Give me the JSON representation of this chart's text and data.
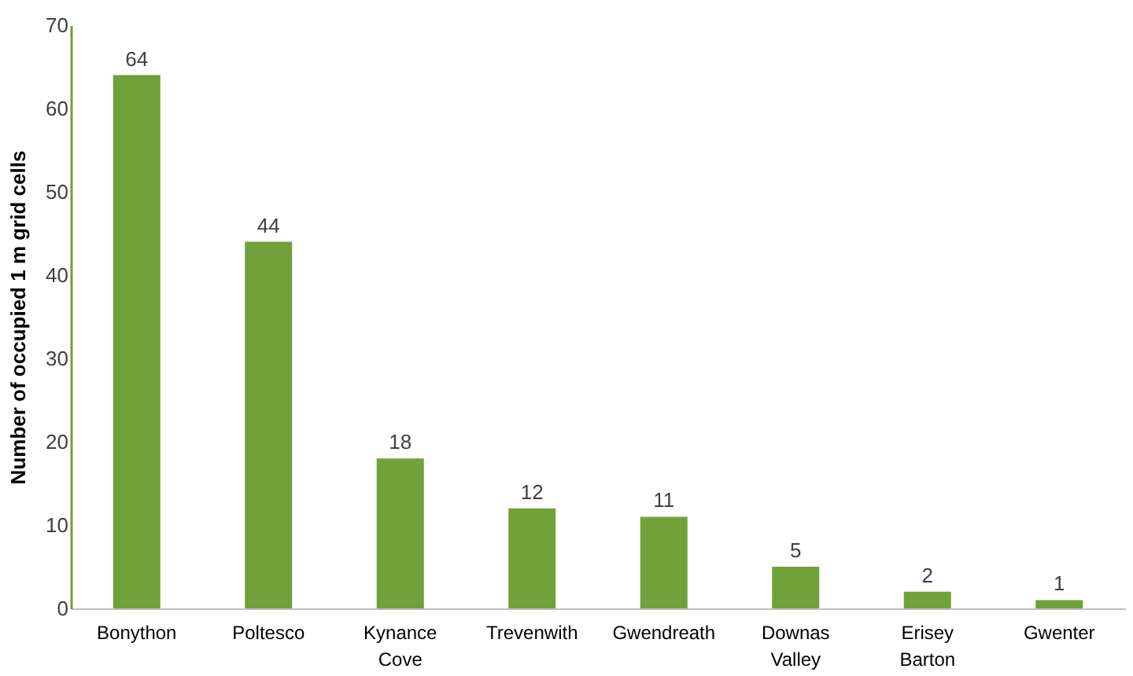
{
  "chart_data": {
    "type": "bar",
    "ylabel": "Number of occupied 1 m grid cells",
    "categories": [
      "Bonython",
      "Poltesco",
      "Kynance Cove",
      "Trevenwith",
      "Gwendreath",
      "Downas Valley",
      "Erisey Barton",
      "Gwenter"
    ],
    "values": [
      64,
      44,
      18,
      12,
      11,
      5,
      2,
      1
    ],
    "color": "#70a13a",
    "ylim": [
      0,
      70
    ],
    "yticks": [
      0,
      10,
      20,
      30,
      40,
      50,
      60,
      70
    ],
    "grid": false,
    "data_labels": true
  }
}
